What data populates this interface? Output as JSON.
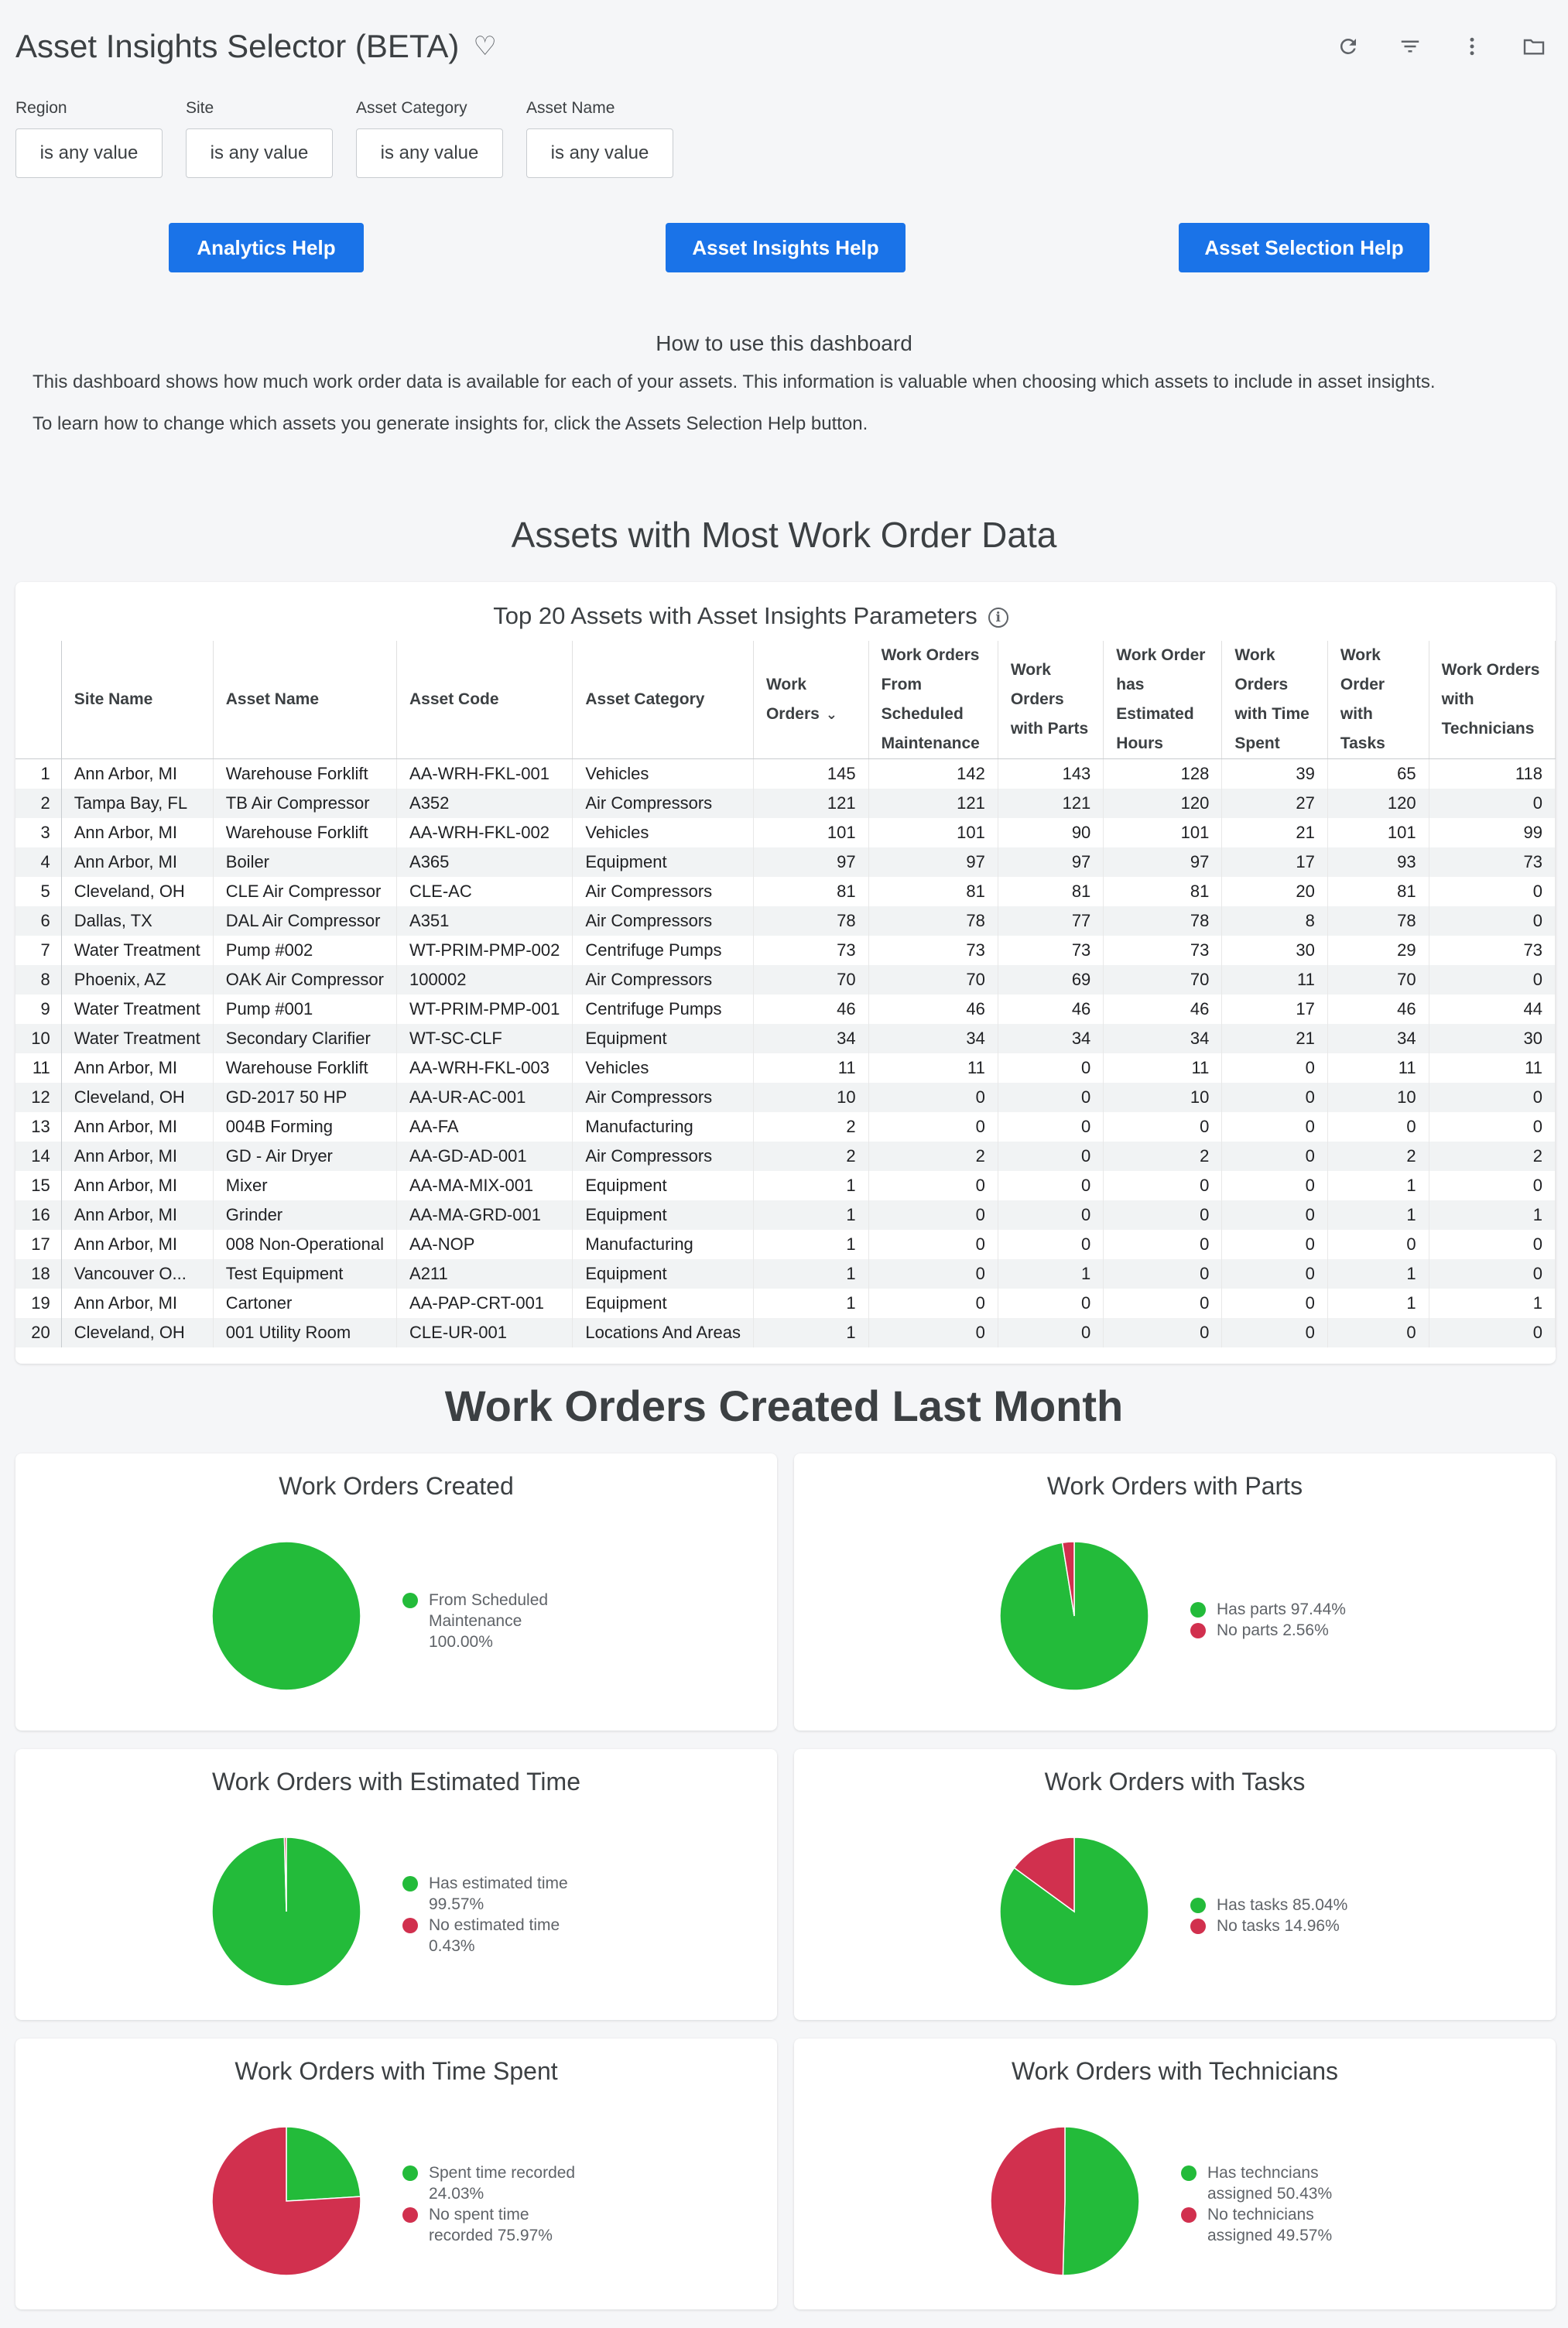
{
  "header": {
    "title": "Asset Insights Selector (BETA)"
  },
  "toolbar": {
    "icons": [
      "refresh-icon",
      "filter-icon",
      "more-vert-icon",
      "folder-icon"
    ]
  },
  "filters": [
    {
      "label": "Region",
      "value": "is any value"
    },
    {
      "label": "Site",
      "value": "is any value"
    },
    {
      "label": "Asset Category",
      "value": "is any value"
    },
    {
      "label": "Asset Name",
      "value": "is any value"
    }
  ],
  "help_buttons": {
    "analytics": "Analytics Help",
    "asset_insights": "Asset Insights Help",
    "asset_selection": "Asset Selection Help"
  },
  "howto": {
    "title": "How to use this dashboard",
    "p1": "This dashboard shows how much work order data is available for each of your assets. This information is valuable when choosing which assets to include in asset insights.",
    "p2": "To learn how to change which assets you generate insights for, click the Assets Selection Help button."
  },
  "section1": {
    "title": "Assets with Most Work Order Data"
  },
  "table": {
    "title": "Top 20 Assets with Asset Insights Parameters",
    "columns": [
      "Site Name",
      "Asset Name",
      "Asset Code",
      "Asset Category",
      "Work Orders",
      "Work Orders From Scheduled Maintenance",
      "Work Orders with Parts",
      "Work Order has Estimated Hours",
      "Work Orders with Time Spent",
      "Work Order with Tasks",
      "Work Orders with Technicians"
    ],
    "rows": [
      [
        "1",
        "Ann Arbor, MI",
        "Warehouse Forklift",
        "AA-WRH-FKL-001",
        "Vehicles",
        "145",
        "142",
        "143",
        "128",
        "39",
        "65",
        "118"
      ],
      [
        "2",
        "Tampa Bay, FL",
        "TB Air Compressor",
        "A352",
        "Air Compressors",
        "121",
        "121",
        "121",
        "120",
        "27",
        "120",
        "0"
      ],
      [
        "3",
        "Ann Arbor, MI",
        "Warehouse Forklift",
        "AA-WRH-FKL-002",
        "Vehicles",
        "101",
        "101",
        "90",
        "101",
        "21",
        "101",
        "99"
      ],
      [
        "4",
        "Ann Arbor, MI",
        "Boiler",
        "A365",
        "Equipment",
        "97",
        "97",
        "97",
        "97",
        "17",
        "93",
        "73"
      ],
      [
        "5",
        "Cleveland, OH",
        "CLE Air Compressor",
        "CLE-AC",
        "Air Compressors",
        "81",
        "81",
        "81",
        "81",
        "20",
        "81",
        "0"
      ],
      [
        "6",
        "Dallas, TX",
        "DAL Air Compressor",
        "A351",
        "Air Compressors",
        "78",
        "78",
        "77",
        "78",
        "8",
        "78",
        "0"
      ],
      [
        "7",
        "Water Treatment",
        "Pump #002",
        "WT-PRIM-PMP-002",
        "Centrifuge Pumps",
        "73",
        "73",
        "73",
        "73",
        "30",
        "29",
        "73"
      ],
      [
        "8",
        "Phoenix, AZ",
        "OAK Air Compressor",
        "100002",
        "Air Compressors",
        "70",
        "70",
        "69",
        "70",
        "11",
        "70",
        "0"
      ],
      [
        "9",
        "Water Treatment",
        "Pump #001",
        "WT-PRIM-PMP-001",
        "Centrifuge Pumps",
        "46",
        "46",
        "46",
        "46",
        "17",
        "46",
        "44"
      ],
      [
        "10",
        "Water Treatment",
        "Secondary Clarifier",
        "WT-SC-CLF",
        "Equipment",
        "34",
        "34",
        "34",
        "34",
        "21",
        "34",
        "30"
      ],
      [
        "11",
        "Ann Arbor, MI",
        "Warehouse Forklift",
        "AA-WRH-FKL-003",
        "Vehicles",
        "11",
        "11",
        "0",
        "11",
        "0",
        "11",
        "11"
      ],
      [
        "12",
        "Cleveland, OH",
        "GD-2017 50 HP",
        "AA-UR-AC-001",
        "Air Compressors",
        "10",
        "0",
        "0",
        "10",
        "0",
        "10",
        "0"
      ],
      [
        "13",
        "Ann Arbor, MI",
        "004B Forming",
        "AA-FA",
        "Manufacturing",
        "2",
        "0",
        "0",
        "0",
        "0",
        "0",
        "0"
      ],
      [
        "14",
        "Ann Arbor, MI",
        "GD - Air Dryer",
        "AA-GD-AD-001",
        "Air Compressors",
        "2",
        "2",
        "0",
        "2",
        "0",
        "2",
        "2"
      ],
      [
        "15",
        "Ann Arbor, MI",
        "Mixer",
        "AA-MA-MIX-001",
        "Equipment",
        "1",
        "0",
        "0",
        "0",
        "0",
        "1",
        "0"
      ],
      [
        "16",
        "Ann Arbor, MI",
        "Grinder",
        "AA-MA-GRD-001",
        "Equipment",
        "1",
        "0",
        "0",
        "0",
        "0",
        "1",
        "1"
      ],
      [
        "17",
        "Ann Arbor, MI",
        "008 Non-Operational",
        "AA-NOP",
        "Manufacturing",
        "1",
        "0",
        "0",
        "0",
        "0",
        "0",
        "0"
      ],
      [
        "18",
        "Vancouver O...",
        "Test Equipment",
        "A211",
        "Equipment",
        "1",
        "0",
        "1",
        "0",
        "0",
        "1",
        "0"
      ],
      [
        "19",
        "Ann Arbor, MI",
        "Cartoner",
        "AA-PAP-CRT-001",
        "Equipment",
        "1",
        "0",
        "0",
        "0",
        "0",
        "1",
        "1"
      ],
      [
        "20",
        "Cleveland, OH",
        "001 Utility Room",
        "CLE-UR-001",
        "Locations And Areas",
        "1",
        "0",
        "0",
        "0",
        "0",
        "0",
        "0"
      ]
    ]
  },
  "section2": {
    "title": "Work Orders Created Last Month"
  },
  "colors": {
    "green": "#23bb3a",
    "red": "#d1304e",
    "accent": "#1a73e8"
  },
  "pies": [
    {
      "title": "Work Orders Created",
      "slices": [
        {
          "pct": 100.0,
          "color": "#23bb3a",
          "label_lines": [
            "From Scheduled",
            "Maintenance",
            "100.00%"
          ]
        }
      ]
    },
    {
      "title": "Work Orders with Parts",
      "slices": [
        {
          "pct": 97.44,
          "color": "#23bb3a",
          "label_lines": [
            "Has parts 97.44%"
          ]
        },
        {
          "pct": 2.56,
          "color": "#d1304e",
          "label_lines": [
            "No parts 2.56%"
          ]
        }
      ]
    },
    {
      "title": "Work Orders with Estimated Time",
      "slices": [
        {
          "pct": 99.57,
          "color": "#23bb3a",
          "label_lines": [
            "Has estimated time",
            "99.57%"
          ]
        },
        {
          "pct": 0.43,
          "color": "#d1304e",
          "label_lines": [
            "No estimated time",
            "0.43%"
          ]
        }
      ]
    },
    {
      "title": "Work Orders with Tasks",
      "slices": [
        {
          "pct": 85.04,
          "color": "#23bb3a",
          "label_lines": [
            "Has tasks 85.04%"
          ]
        },
        {
          "pct": 14.96,
          "color": "#d1304e",
          "label_lines": [
            "No tasks 14.96%"
          ]
        }
      ]
    },
    {
      "title": "Work Orders with Time Spent",
      "slices": [
        {
          "pct": 24.03,
          "color": "#23bb3a",
          "label_lines": [
            "Spent time recorded",
            "24.03%"
          ]
        },
        {
          "pct": 75.97,
          "color": "#d1304e",
          "label_lines": [
            "No spent time",
            "recorded 75.97%"
          ]
        }
      ]
    },
    {
      "title": "Work Orders with Technicians",
      "slices": [
        {
          "pct": 50.43,
          "color": "#23bb3a",
          "label_lines": [
            "Has techncians",
            "assigned 50.43%"
          ]
        },
        {
          "pct": 49.57,
          "color": "#d1304e",
          "label_lines": [
            "No technicians",
            "assigned 49.57%"
          ]
        }
      ]
    }
  ],
  "chart_data": [
    {
      "type": "pie",
      "title": "Work Orders Created",
      "categories": [
        "From Scheduled Maintenance"
      ],
      "values": [
        100.0
      ]
    },
    {
      "type": "pie",
      "title": "Work Orders with Parts",
      "categories": [
        "Has parts",
        "No parts"
      ],
      "values": [
        97.44,
        2.56
      ]
    },
    {
      "type": "pie",
      "title": "Work Orders with Estimated Time",
      "categories": [
        "Has estimated time",
        "No estimated time"
      ],
      "values": [
        99.57,
        0.43
      ]
    },
    {
      "type": "pie",
      "title": "Work Orders with Tasks",
      "categories": [
        "Has tasks",
        "No tasks"
      ],
      "values": [
        85.04,
        14.96
      ]
    },
    {
      "type": "pie",
      "title": "Work Orders with Time Spent",
      "categories": [
        "Spent time recorded",
        "No spent time recorded"
      ],
      "values": [
        24.03,
        75.97
      ]
    },
    {
      "type": "pie",
      "title": "Work Orders with Technicians",
      "categories": [
        "Has techncians assigned",
        "No technicians assigned"
      ],
      "values": [
        50.43,
        49.57
      ]
    }
  ]
}
